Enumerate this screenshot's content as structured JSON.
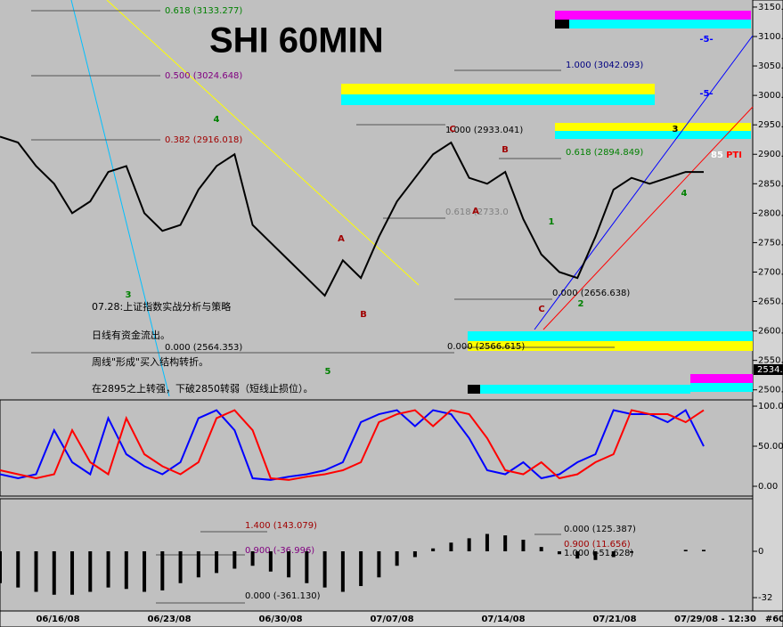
{
  "title": "SHI 60MIN",
  "notes": [
    "07.28:上证指数实战分析与策略",
    "日线有资金流出。",
    "周线\"形成\"买入结构转折。",
    "在2895之上转强，下破2850转弱（短线止损位）。"
  ],
  "fib_labels": [
    "0.618 (3133.277)",
    "0.500 (3024.648)",
    "0.382 (2916.018)",
    "0.000 (2564.353)",
    "1.000 (3042.093)",
    "1.000 (2933.041)",
    "0.618 (2894.849)",
    "0.618 (2733.0",
    "0.000 (2656.638)",
    "0.000 (2566.615)",
    "1.400 (143.079)",
    "0.900 (-36.996)",
    "0.000 (-361.130)",
    "0.000 (125.387)",
    "0.900 (11.656)",
    "1.000 (-51.628)"
  ],
  "wave_labels": [
    "4",
    "3",
    "5",
    "A",
    "B",
    "C",
    "A",
    "B",
    "C",
    "1",
    "2",
    "4",
    "3",
    "-5-",
    "-5-",
    "85",
    "PTI"
  ],
  "price_tag": "2534.",
  "dates": [
    "06/16/08",
    "06/23/08",
    "06/30/08",
    "07/07/08",
    "07/14/08",
    "07/21/08",
    "07/29/08 - 12:30",
    "#60"
  ],
  "chart_data": [
    {
      "type": "line",
      "color": "#000000",
      "values": [
        2930,
        2920,
        2880,
        2850,
        2800,
        2820,
        2870,
        2880,
        2800,
        2770,
        2780,
        2840,
        2880,
        2900,
        2780,
        2750,
        2720,
        2690,
        2660,
        2720,
        2690,
        2760,
        2820,
        2860,
        2900,
        2920,
        2860,
        2850,
        2870,
        2790,
        2730,
        2700,
        2690,
        2760,
        2840,
        2860,
        2850,
        2860,
        2870,
        2870
      ],
      "ylim": [
        2489,
        3162
      ],
      "yticks": [
        {
          "value": 3150,
          "label": "3150."
        },
        {
          "value": 3100,
          "label": "3100."
        },
        {
          "value": 3050,
          "label": "3050."
        },
        {
          "value": 3000,
          "label": "3000."
        },
        {
          "value": 2950,
          "label": "2950."
        },
        {
          "value": 2900,
          "label": "2900."
        },
        {
          "value": 2850,
          "label": "2850."
        },
        {
          "value": 2800,
          "label": "2800."
        },
        {
          "value": 2750,
          "label": "2750."
        },
        {
          "value": 2700,
          "label": "2700."
        },
        {
          "value": 2650,
          "label": "2650."
        },
        {
          "value": 2600,
          "label": "2600."
        },
        {
          "value": 2550,
          "label": "2550."
        },
        {
          "value": 2500,
          "label": "2500."
        }
      ]
    },
    {
      "type": "line",
      "series": [
        {
          "color": "#0000ff",
          "values": [
            15,
            10,
            15,
            70,
            30,
            15,
            85,
            40,
            25,
            15,
            30,
            85,
            95,
            70,
            10,
            8,
            12,
            15,
            20,
            30,
            80,
            90,
            95,
            75,
            95,
            90,
            60,
            20,
            15,
            30,
            10,
            15,
            30,
            40,
            95,
            90,
            90,
            80,
            95,
            50
          ]
        },
        {
          "color": "#ff0000",
          "values": [
            20,
            15,
            10,
            15,
            70,
            30,
            15,
            85,
            40,
            25,
            15,
            30,
            85,
            95,
            70,
            10,
            8,
            12,
            15,
            20,
            30,
            80,
            90,
            95,
            75,
            95,
            90,
            60,
            20,
            15,
            30,
            10,
            15,
            30,
            40,
            95,
            90,
            90,
            80,
            95
          ]
        }
      ],
      "ylim": [
        -10,
        106.7
      ],
      "yticks": [
        {
          "value": 100,
          "label": "100.0"
        },
        {
          "value": 50,
          "label": "50.00"
        },
        {
          "value": 0,
          "label": "0.00"
        }
      ]
    },
    {
      "type": "bar",
      "color": "#000000",
      "values": [
        -22,
        -25,
        -28,
        -30,
        -30,
        -28,
        -25,
        -26,
        -28,
        -27,
        -22,
        -18,
        -15,
        -12,
        -10,
        -14,
        -18,
        -22,
        -25,
        -28,
        -24,
        -18,
        -10,
        -4,
        2,
        6,
        9,
        12,
        11,
        8,
        3,
        -2,
        -5,
        -6,
        -4,
        -1,
        0,
        0,
        1,
        1
      ],
      "ylim": [
        -40.6,
        36.3
      ],
      "yticks": [
        0,
        -32
      ]
    }
  ]
}
